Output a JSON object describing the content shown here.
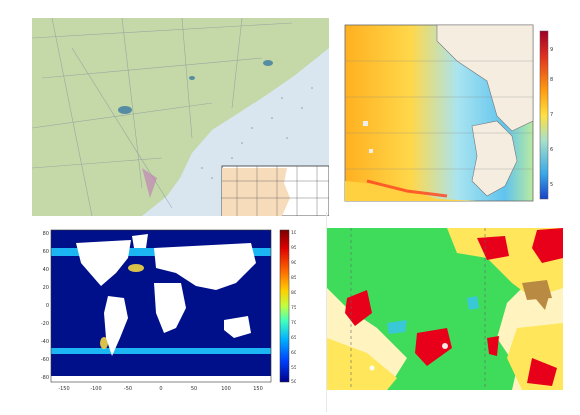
{
  "panels": {
    "nautical": {
      "name": "nautical-chart-panel",
      "colors": {
        "land": "#c4d8a8",
        "water": "#d9e6ef",
        "inset_land": "#f7dcbc",
        "inset_sea": "#ffffff"
      }
    },
    "north_sea": {
      "name": "north-sea-temperature-map",
      "colorbar_ticks": [
        "9",
        "8",
        "7",
        "6",
        "5"
      ],
      "colorbar_colors": [
        "#a0002a",
        "#e03020",
        "#ff9a10",
        "#ffe040",
        "#a9e0c8",
        "#3aa8e8",
        "#1840c8"
      ]
    },
    "world": {
      "name": "global-ocean-map",
      "y_ticks": [
        "80",
        "60",
        "40",
        "20",
        "0",
        "-20",
        "-40",
        "-60",
        "-80"
      ],
      "x_ticks": [
        "-150",
        "-100",
        "-50",
        "0",
        "50",
        "100",
        "150"
      ],
      "colorbar_ticks": [
        "100",
        "95",
        "90",
        "85",
        "80",
        "75",
        "70",
        "65",
        "60",
        "55",
        "50"
      ],
      "colorbar_colors": [
        "#7a0000",
        "#e00000",
        "#ff7000",
        "#ffd000",
        "#c0ff40",
        "#40ffc0",
        "#00b0ff",
        "#0040ff",
        "#00008a"
      ]
    },
    "categories": {
      "name": "categorical-region-map",
      "colors": {
        "green": "#3fdc5b",
        "yellow": "#ffe65a",
        "pale": "#fff3c0",
        "red": "#e8001a",
        "brown": "#b98a42",
        "cyan": "#39c8d6"
      }
    }
  }
}
